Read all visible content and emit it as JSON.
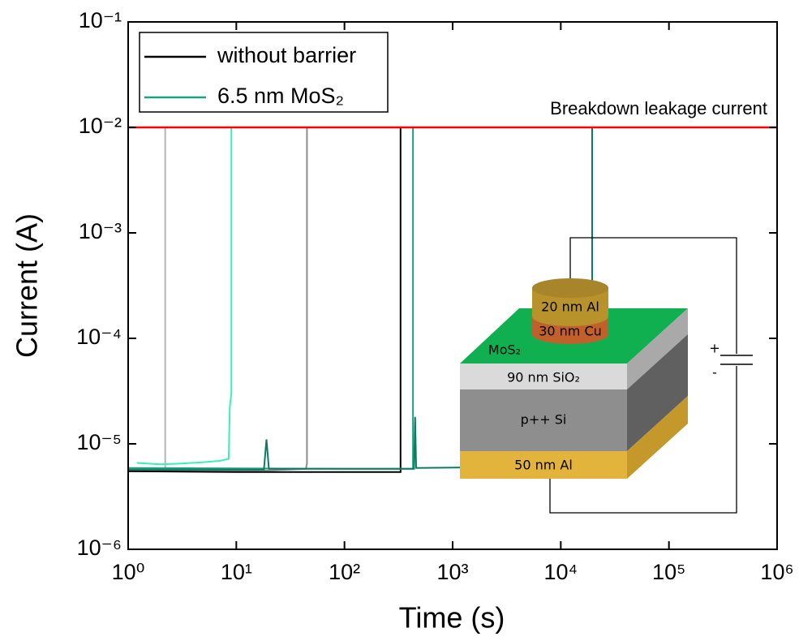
{
  "chart_data": {
    "type": "line",
    "xlabel": "Time (s)",
    "ylabel": "Current (A)",
    "xscale": "log",
    "yscale": "log",
    "grid": false,
    "legend": "upper left",
    "xlim": [
      1,
      1000000
    ],
    "xticks": [
      {
        "value": 1,
        "label": "10⁰"
      },
      {
        "value": 10,
        "label": "10¹"
      },
      {
        "value": 100,
        "label": "10²"
      },
      {
        "value": 1000,
        "label": "10³"
      },
      {
        "value": 10000,
        "label": "10⁴"
      },
      {
        "value": 100000,
        "label": "10⁵"
      },
      {
        "value": 1000000,
        "label": "10⁶"
      }
    ],
    "ylim": [
      1e-06,
      0.1
    ],
    "yticks": [
      {
        "value": 1e-06,
        "label": "10⁻⁶"
      },
      {
        "value": 1e-05,
        "label": "10⁻⁵"
      },
      {
        "value": 0.0001,
        "label": "10⁻⁴"
      },
      {
        "value": 0.001,
        "label": "10⁻³"
      },
      {
        "value": 0.01,
        "label": "10⁻²"
      },
      {
        "value": 0.1,
        "label": "10⁻¹"
      }
    ],
    "reference_line": {
      "value": 0.01,
      "label": "Breakdown leakage current",
      "color": "#ff0000"
    },
    "series": [
      {
        "color": "#b4b4b4",
        "x": [
          1,
          2.2,
          2.2
        ],
        "values": [
          5.8e-06,
          5.8e-06,
          0.01
        ]
      },
      {
        "color": "#8c8c8c",
        "x": [
          1,
          20,
          44,
          45,
          45
        ],
        "values": [
          5.5e-06,
          5.6e-06,
          5.8e-06,
          6.5e-06,
          0.01
        ]
      },
      {
        "color": "#3cf0b4",
        "x": [
          1.2,
          2,
          3,
          5,
          7,
          8.5,
          8.7,
          8.8,
          9,
          9
        ],
        "values": [
          6.6e-06,
          6.4e-06,
          6.5e-06,
          6.7e-06,
          6.9e-06,
          7.2e-06,
          2.2e-05,
          2.5e-05,
          3e-05,
          0.01
        ]
      },
      {
        "name": "without barrier",
        "color": "#000000",
        "x": [
          1,
          10,
          100,
          320,
          330,
          330
        ],
        "values": [
          5.5e-06,
          5.4e-06,
          5.4e-06,
          5.4e-06,
          5.4e-06,
          0.01
        ]
      },
      {
        "name": "6.5 nm MoS₂",
        "color": "#1ba37c",
        "x": [
          1,
          100,
          400,
          420,
          430,
          430
        ],
        "values": [
          5.9e-06,
          5.8e-06,
          5.8e-06,
          5.8e-06,
          5.8e-06,
          0.01
        ]
      },
      {
        "color": "#0d7a62",
        "x": [
          1,
          18,
          19,
          20,
          100,
          440,
          450,
          460,
          2000,
          19000,
          19500,
          19500
        ],
        "values": [
          5.7e-06,
          5.7e-06,
          1.1e-05,
          5.8e-06,
          5.8e-06,
          5.8e-06,
          1.8e-05,
          5.9e-06,
          6e-06,
          6e-06,
          6e-06,
          0.01
        ]
      }
    ]
  },
  "inset": {
    "labels": [
      "20 nm Al",
      "30 nm Cu",
      "MoS₂",
      "90 nm SiO₂",
      "p++ Si",
      "50 nm Al",
      "+",
      "-"
    ]
  }
}
